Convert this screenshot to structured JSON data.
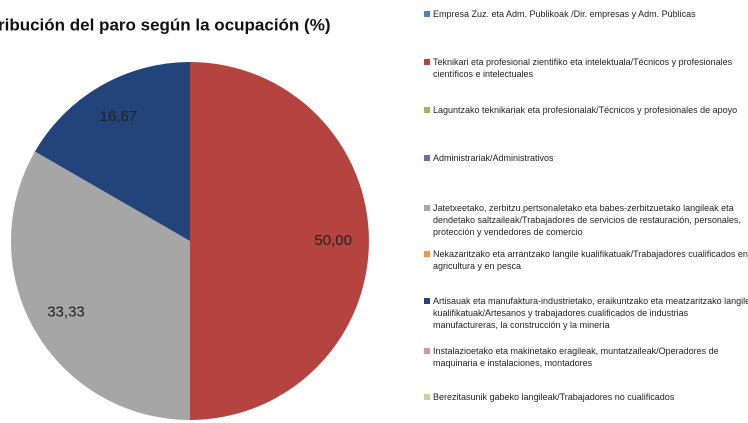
{
  "chart_data": {
    "type": "pie",
    "title": "ribución del paro según la ocupación (%)",
    "categories": [
      "Empresa Zuz. eta Adm. Publikoak /Dir. empresas y Adm. Públicas",
      "Teknikari eta profesional zientifiko eta intelektuala/Técnicos y profesionales científicos e intelectuales",
      "Laguntzako teknikariak eta profesionalak/Técnicos y profesionales de apoyo",
      "Administrariak/Administrativos",
      "Jatetxeetako, zerbitzu pertsonaletako eta babes-zerbitzuetako langileak eta dendetako saltzaileak/Trabajadores de servicios de restauración, personales, protección y vendedores de comercio",
      "Nekazaritzako eta arrantzako langile kualifikatuak/Trabajadores cualificados en agricultura y en pesca",
      "Artisauak eta manufaktura-industrietako, eraikuntzako eta meatzaritzako langile kualifikatuak/Artesanos y trabajadores cualificados de industrias manufactureras, la construcción y la minería",
      "Instalazioetako eta makinetako eragileak, muntatzaileak/Operadores de maquinaria e instalaciones, montadores",
      "Berezitasunik gabeko langileak/Trabajadores no cualificados"
    ],
    "values": [
      0,
      50,
      0,
      0,
      33.33,
      0,
      16.67,
      0,
      0
    ],
    "value_labels": [
      null,
      "50,00",
      null,
      null,
      "33,33",
      null,
      "16,67",
      null,
      null
    ],
    "colors": [
      "#4f81bd",
      "#b5433f",
      "#9bbb59",
      "#8064a2",
      "#a6a6a6",
      "#f79646",
      "#23447a",
      "#d99694",
      "#c3d69b"
    ]
  }
}
